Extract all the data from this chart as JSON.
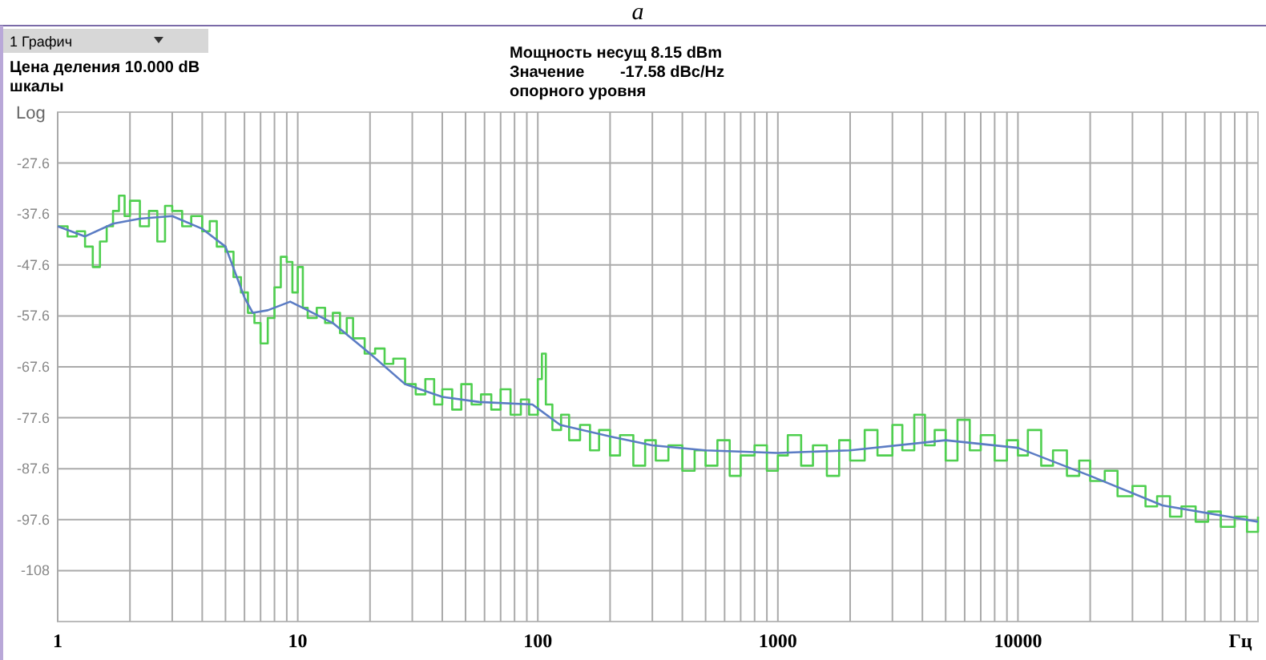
{
  "chart_data": {
    "type": "step",
    "title": "a",
    "xlabel": "Гц",
    "ylabel": "Log",
    "annotations": [
      "1 Графич",
      "Цена деления 10.000 dB",
      "шкалы",
      "Мощность несущ 8.15 dBm",
      "Значение        -17.58 dBc/Hz",
      "опорного уровня"
    ],
    "log": "x",
    "grid": true,
    "line_style": "solid",
    "marker": "none",
    "xlim": [
      1,
      100000
    ],
    "ylim": [
      -117.6,
      -17.6
    ],
    "xticks": [
      1,
      {
        "value": 2,
        "label": null
      },
      {
        "value": 3,
        "label": null
      },
      {
        "value": 4,
        "label": null
      },
      {
        "value": 5,
        "label": null
      },
      {
        "value": 6,
        "label": null
      },
      {
        "value": 7,
        "label": null
      },
      {
        "value": 8,
        "label": null
      },
      {
        "value": 9,
        "label": null
      },
      10,
      {
        "value": 20,
        "label": null
      },
      {
        "value": 30,
        "label": null
      },
      {
        "value": 40,
        "label": null
      },
      {
        "value": 50,
        "label": null
      },
      {
        "value": 60,
        "label": null
      },
      {
        "value": 70,
        "label": null
      },
      {
        "value": 80,
        "label": null
      },
      {
        "value": 90,
        "label": null
      },
      100,
      {
        "value": 200,
        "label": null
      },
      {
        "value": 300,
        "label": null
      },
      {
        "value": 400,
        "label": null
      },
      {
        "value": 500,
        "label": null
      },
      {
        "value": 600,
        "label": null
      },
      {
        "value": 700,
        "label": null
      },
      {
        "value": 800,
        "label": null
      },
      {
        "value": 900,
        "label": null
      },
      1000,
      {
        "value": 2000,
        "label": null
      },
      {
        "value": 3000,
        "label": null
      },
      {
        "value": 4000,
        "label": null
      },
      {
        "value": 5000,
        "label": null
      },
      {
        "value": 6000,
        "label": null
      },
      {
        "value": 7000,
        "label": null
      },
      {
        "value": 8000,
        "label": null
      },
      {
        "value": 9000,
        "label": null
      },
      10000,
      {
        "value": 20000,
        "label": null
      },
      {
        "value": 30000,
        "label": null
      },
      {
        "value": 40000,
        "label": null
      },
      {
        "value": 50000,
        "label": null
      },
      {
        "value": 60000,
        "label": null
      },
      {
        "value": 70000,
        "label": null
      },
      {
        "value": 80000,
        "label": null
      },
      {
        "value": 90000,
        "label": null
      }
    ],
    "yticks": [
      -27.6,
      -37.6,
      -47.6,
      -57.6,
      -67.6,
      -77.6,
      -87.6,
      -97.6,
      {
        "value": -107.6,
        "label": "-108"
      }
    ],
    "series": [
      {
        "color": "#4fcf4f",
        "x": [
          1,
          1.1,
          1.2,
          1.3,
          1.4,
          1.5,
          1.6,
          1.7,
          1.8,
          1.9,
          2,
          2.2,
          2.4,
          2.6,
          2.8,
          3,
          3.3,
          3.6,
          4,
          4.3,
          4.6,
          5,
          5.4,
          5.8,
          6.2,
          6.6,
          7,
          7.5,
          8,
          8.5,
          9,
          9.5,
          10,
          10.5,
          11,
          12,
          13,
          14,
          15,
          16,
          17,
          19,
          21,
          23,
          25,
          28,
          31,
          34,
          37,
          40,
          44,
          48,
          53,
          58,
          64,
          70,
          77,
          85,
          92,
          100,
          104,
          108,
          115,
          125,
          135,
          150,
          165,
          180,
          200,
          220,
          250,
          280,
          310,
          350,
          400,
          450,
          500,
          560,
          630,
          700,
          800,
          900,
          1000,
          1100,
          1250,
          1400,
          1600,
          1800,
          2000,
          2300,
          2600,
          3000,
          3300,
          3700,
          4100,
          4500,
          5000,
          5600,
          6300,
          7000,
          8000,
          9000,
          10000,
          11000,
          12500,
          14000,
          16000,
          18000,
          20000,
          23000,
          26000,
          30000,
          34000,
          38000,
          43000,
          48000,
          55000,
          62000,
          70000,
          80000,
          90000,
          100000
        ],
        "values": [
          -40,
          -42,
          -41,
          -44,
          -48,
          -43,
          -40,
          -37,
          -34,
          -38,
          -35,
          -40,
          -37,
          -43,
          -36,
          -37,
          -40,
          -38,
          -41,
          -39,
          -44,
          -45,
          -50,
          -53,
          -57,
          -59,
          -63,
          -58,
          -52,
          -46,
          -47,
          -53,
          -48,
          -56,
          -58,
          -56,
          -59,
          -57,
          -61,
          -58,
          -62,
          -65,
          -64,
          -67,
          -66,
          -71,
          -73,
          -70,
          -75,
          -72,
          -76,
          -71,
          -75,
          -73,
          -76,
          -72,
          -77,
          -74,
          -77,
          -70,
          -65,
          -75,
          -80,
          -77,
          -82,
          -79,
          -84,
          -80,
          -85,
          -81,
          -87,
          -82,
          -86,
          -83,
          -88,
          -84,
          -87,
          -82,
          -89,
          -85,
          -83,
          -88,
          -85,
          -81,
          -87,
          -83,
          -89,
          -82,
          -86,
          -80,
          -85,
          -79,
          -84,
          -77,
          -83,
          -80,
          -86,
          -78,
          -84,
          -81,
          -86,
          -82,
          -85,
          -80,
          -87,
          -84,
          -89,
          -86,
          -90,
          -88,
          -93,
          -91,
          -95,
          -93,
          -97,
          -95,
          -98,
          -96,
          -99,
          -97,
          -100,
          -97
        ]
      },
      {
        "type": "line",
        "color": "#5b7cc4",
        "x": [
          1,
          1.3,
          1.7,
          2.2,
          3,
          4,
          5,
          6,
          6.5,
          7.5,
          9.3,
          11,
          14,
          20,
          28,
          40,
          57,
          95,
          124,
          206,
          300,
          500,
          1000,
          2000,
          5000,
          10000,
          20000,
          40000,
          100000
        ],
        "values": [
          -40,
          -42,
          -39.5,
          -38.5,
          -38,
          -40.5,
          -44,
          -54,
          -57,
          -56.5,
          -54.8,
          -56.5,
          -59,
          -65,
          -71,
          -73.5,
          -74.5,
          -75,
          -79,
          -81.4,
          -83,
          -84,
          -84.5,
          -84,
          -82,
          -83.5,
          -89,
          -94.8,
          -98
        ]
      }
    ]
  }
}
